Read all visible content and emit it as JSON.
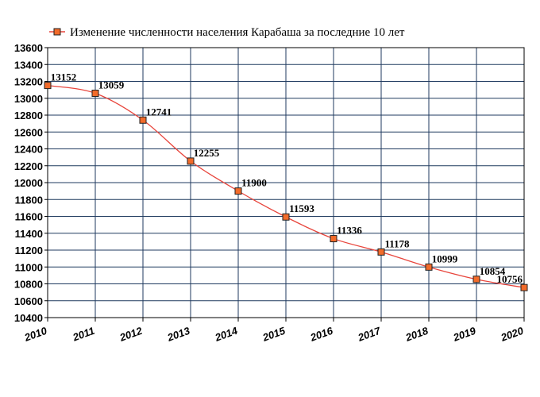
{
  "chart_data": {
    "type": "line",
    "legend_position": "top-left",
    "grid": true,
    "x": [
      "2010",
      "2011",
      "2012",
      "2013",
      "2014",
      "2015",
      "2016",
      "2017",
      "2018",
      "2019",
      "2020"
    ],
    "series": [
      {
        "name": "Изменение численности населения Карабаша за последние 10 лет",
        "values": [
          13152,
          13059,
          12741,
          12255,
          11900,
          11593,
          11336,
          11178,
          10999,
          10854,
          10756
        ]
      }
    ],
    "ylim": [
      10400,
      13600
    ],
    "yticks": [
      13600,
      13400,
      13200,
      13000,
      12800,
      12600,
      12400,
      12200,
      12000,
      11800,
      11600,
      11400,
      11200,
      11000,
      10800,
      10600,
      10400
    ],
    "colors": {
      "line": "#e8453c",
      "marker_fill": "#f26b2a",
      "marker_edge": "#222222",
      "grid": "#1f3a5f",
      "background": "#ffffff"
    }
  }
}
